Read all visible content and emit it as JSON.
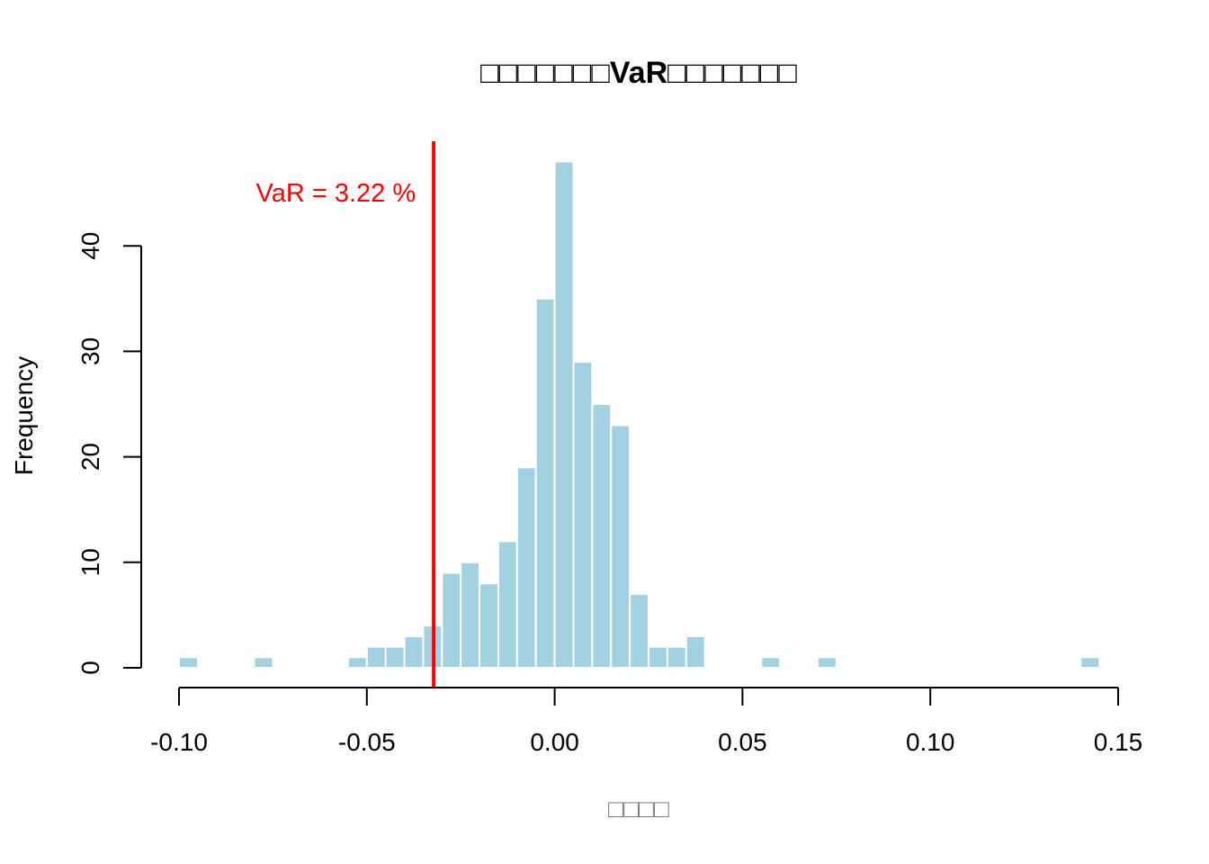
{
  "chart_data": {
    "type": "bar",
    "title": "□□□□□□□VaR□□□□□□□",
    "xlabel": "□□□□",
    "ylabel": "Frequency",
    "xlim": [
      -0.1,
      0.15
    ],
    "ylim": [
      0,
      48
    ],
    "x_ticks": [
      "-0.10",
      "-0.05",
      "0.00",
      "0.05",
      "0.10",
      "0.15"
    ],
    "x_tick_values": [
      -0.1,
      -0.05,
      0.0,
      0.05,
      0.1,
      0.15
    ],
    "y_ticks": [
      "0",
      "10",
      "20",
      "30",
      "40"
    ],
    "y_tick_values": [
      0,
      10,
      20,
      30,
      40
    ],
    "bin_width": 0.005,
    "bins": [
      {
        "x0": -0.1,
        "x1": -0.095,
        "count": 1
      },
      {
        "x0": -0.08,
        "x1": -0.075,
        "count": 1
      },
      {
        "x0": -0.055,
        "x1": -0.05,
        "count": 1
      },
      {
        "x0": -0.05,
        "x1": -0.045,
        "count": 2
      },
      {
        "x0": -0.045,
        "x1": -0.04,
        "count": 2
      },
      {
        "x0": -0.04,
        "x1": -0.035,
        "count": 3
      },
      {
        "x0": -0.035,
        "x1": -0.03,
        "count": 4
      },
      {
        "x0": -0.03,
        "x1": -0.025,
        "count": 9
      },
      {
        "x0": -0.025,
        "x1": -0.02,
        "count": 10
      },
      {
        "x0": -0.02,
        "x1": -0.015,
        "count": 8
      },
      {
        "x0": -0.015,
        "x1": -0.01,
        "count": 12
      },
      {
        "x0": -0.01,
        "x1": -0.005,
        "count": 19
      },
      {
        "x0": -0.005,
        "x1": 0.0,
        "count": 35
      },
      {
        "x0": 0.0,
        "x1": 0.005,
        "count": 48
      },
      {
        "x0": 0.005,
        "x1": 0.01,
        "count": 29
      },
      {
        "x0": 0.01,
        "x1": 0.015,
        "count": 25
      },
      {
        "x0": 0.015,
        "x1": 0.02,
        "count": 23
      },
      {
        "x0": 0.02,
        "x1": 0.025,
        "count": 7
      },
      {
        "x0": 0.025,
        "x1": 0.03,
        "count": 2
      },
      {
        "x0": 0.03,
        "x1": 0.035,
        "count": 2
      },
      {
        "x0": 0.035,
        "x1": 0.04,
        "count": 3
      },
      {
        "x0": 0.055,
        "x1": 0.06,
        "count": 1
      },
      {
        "x0": 0.07,
        "x1": 0.075,
        "count": 1
      },
      {
        "x0": 0.14,
        "x1": 0.145,
        "count": 1
      }
    ],
    "var_line": {
      "x": -0.0322,
      "label": "VaR = 3.22 %",
      "color": "#ff0000"
    },
    "bar_color": "#a2d1e1",
    "bar_edge_color": "#ffffff",
    "grid": false
  }
}
